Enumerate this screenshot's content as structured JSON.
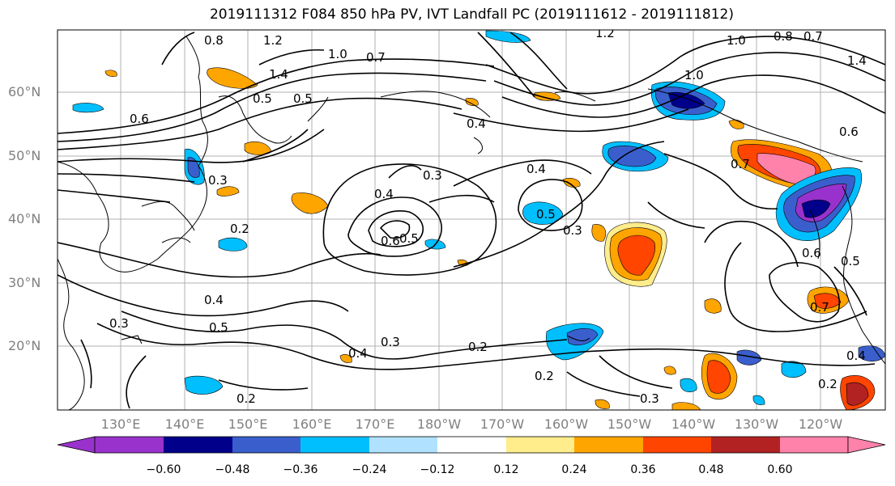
{
  "title": "2019111312 F084 850 hPa PV, IVT Landfall PC (2019111612 - 2019111812)",
  "lat_labels": [
    "60°N",
    "50°N",
    "40°N",
    "30°N",
    "20°N"
  ],
  "lon_labels": [
    "130°E",
    "140°E",
    "150°E",
    "160°E",
    "170°E",
    "180°W",
    "170°W",
    "160°W",
    "150°W",
    "140°W",
    "130°W",
    "120°W"
  ],
  "colorbar": {
    "ticks": [
      "−0.60",
      "−0.48",
      "−0.36",
      "−0.24",
      "−0.12",
      "0.12",
      "0.24",
      "0.36",
      "0.48",
      "0.60"
    ],
    "colors": [
      "#9932CC",
      "#00008B",
      "#3A5FCD",
      "#00BFFF",
      "#B0E2FF",
      "#FFFFFF",
      "#FFEC8B",
      "#FFA500",
      "#FF4500",
      "#B22222",
      "#FF82AB"
    ]
  },
  "contour_labels": [
    "0.8",
    "1.2",
    "1.4",
    "1.0",
    "0.7",
    "1.2",
    "1.0",
    "0.8",
    "0.7",
    "1.4",
    "0.6",
    "0.5",
    "0.4",
    "0.3",
    "0.2",
    "0.4",
    "0.5",
    "0.3",
    "0.4",
    "0.5",
    "0.6",
    "0.4",
    "0.3",
    "0.2",
    "0.3",
    "0.4",
    "0.5",
    "0.7",
    "0.6",
    "0.5",
    "0.3",
    "0.2",
    "0.2",
    "0.2",
    "0.3",
    "0.5",
    "0.4",
    "0.6",
    "1.0",
    "0.7"
  ]
}
